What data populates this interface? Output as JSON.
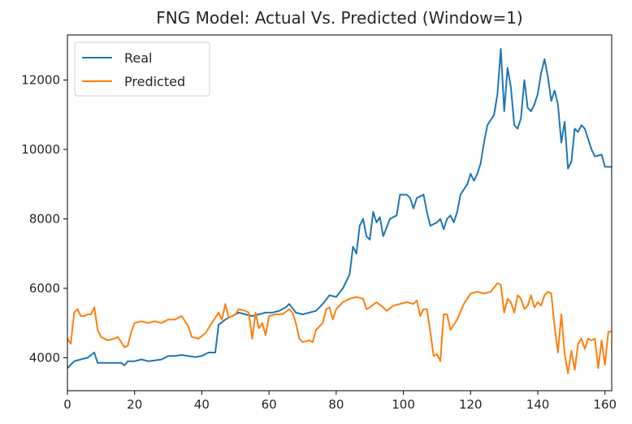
{
  "chart_data": {
    "type": "line",
    "title": "FNG Model: Actual Vs. Predicted (Window=1)",
    "xlabel": "",
    "ylabel": "",
    "xlim": [
      0,
      162
    ],
    "ylim": [
      3050,
      13300
    ],
    "xticks": [
      0,
      20,
      40,
      60,
      80,
      100,
      120,
      140,
      160
    ],
    "yticks": [
      4000,
      6000,
      8000,
      10000,
      12000
    ],
    "grid": false,
    "legend_position": "top-left",
    "series": [
      {
        "name": "Real",
        "color": "#1f77b4",
        "points": [
          [
            0,
            3700
          ],
          [
            2,
            3900
          ],
          [
            4,
            3950
          ],
          [
            6,
            4000
          ],
          [
            8,
            4150
          ],
          [
            9,
            3850
          ],
          [
            12,
            3850
          ],
          [
            16,
            3850
          ],
          [
            17,
            3780
          ],
          [
            18,
            3900
          ],
          [
            20,
            3900
          ],
          [
            22,
            3950
          ],
          [
            24,
            3900
          ],
          [
            26,
            3920
          ],
          [
            28,
            3950
          ],
          [
            30,
            4050
          ],
          [
            32,
            4050
          ],
          [
            34,
            4080
          ],
          [
            36,
            4050
          ],
          [
            38,
            4020
          ],
          [
            40,
            4050
          ],
          [
            42,
            4150
          ],
          [
            44,
            4150
          ],
          [
            45,
            4950
          ],
          [
            47,
            5100
          ],
          [
            49,
            5200
          ],
          [
            51,
            5300
          ],
          [
            53,
            5250
          ],
          [
            55,
            5200
          ],
          [
            57,
            5250
          ],
          [
            59,
            5300
          ],
          [
            61,
            5300
          ],
          [
            63,
            5350
          ],
          [
            65,
            5450
          ],
          [
            66,
            5550
          ],
          [
            68,
            5300
          ],
          [
            70,
            5250
          ],
          [
            72,
            5300
          ],
          [
            74,
            5350
          ],
          [
            76,
            5550
          ],
          [
            78,
            5800
          ],
          [
            80,
            5750
          ],
          [
            82,
            6000
          ],
          [
            84,
            6400
          ],
          [
            85,
            7200
          ],
          [
            86,
            7000
          ],
          [
            87,
            7800
          ],
          [
            88,
            8000
          ],
          [
            89,
            7500
          ],
          [
            90,
            7400
          ],
          [
            91,
            8200
          ],
          [
            92,
            7900
          ],
          [
            93,
            8050
          ],
          [
            94,
            7500
          ],
          [
            96,
            8000
          ],
          [
            98,
            8100
          ],
          [
            99,
            8700
          ],
          [
            101,
            8700
          ],
          [
            102,
            8600
          ],
          [
            103,
            8300
          ],
          [
            104,
            8600
          ],
          [
            106,
            8700
          ],
          [
            107,
            8200
          ],
          [
            108,
            7800
          ],
          [
            110,
            7900
          ],
          [
            111,
            8000
          ],
          [
            112,
            7700
          ],
          [
            113,
            8000
          ],
          [
            114,
            8100
          ],
          [
            115,
            7900
          ],
          [
            116,
            8200
          ],
          [
            117,
            8700
          ],
          [
            119,
            9000
          ],
          [
            120,
            9300
          ],
          [
            121,
            9100
          ],
          [
            122,
            9300
          ],
          [
            123,
            9600
          ],
          [
            124,
            10200
          ],
          [
            125,
            10700
          ],
          [
            127,
            11000
          ],
          [
            128,
            11600
          ],
          [
            129,
            12900
          ],
          [
            130,
            11100
          ],
          [
            131,
            12350
          ],
          [
            132,
            11800
          ],
          [
            133,
            10700
          ],
          [
            134,
            10600
          ],
          [
            135,
            10900
          ],
          [
            136,
            12000
          ],
          [
            137,
            11200
          ],
          [
            138,
            11100
          ],
          [
            139,
            11300
          ],
          [
            140,
            11600
          ],
          [
            141,
            12200
          ],
          [
            142,
            12600
          ],
          [
            143,
            12100
          ],
          [
            144,
            11400
          ],
          [
            145,
            11700
          ],
          [
            146,
            11300
          ],
          [
            147,
            10200
          ],
          [
            148,
            10800
          ],
          [
            149,
            9450
          ],
          [
            150,
            9650
          ],
          [
            151,
            10600
          ],
          [
            152,
            10500
          ],
          [
            153,
            10700
          ],
          [
            154,
            10600
          ],
          [
            155,
            10300
          ],
          [
            156,
            10000
          ],
          [
            157,
            9800
          ],
          [
            159,
            9850
          ],
          [
            160,
            9500
          ],
          [
            162,
            9500
          ]
        ]
      },
      {
        "name": "Predicted",
        "color": "#ff7f0e",
        "points": [
          [
            0,
            4550
          ],
          [
            1,
            4400
          ],
          [
            2,
            5300
          ],
          [
            3,
            5400
          ],
          [
            4,
            5200
          ],
          [
            5,
            5200
          ],
          [
            6,
            5250
          ],
          [
            7,
            5250
          ],
          [
            8,
            5450
          ],
          [
            9,
            4800
          ],
          [
            10,
            4600
          ],
          [
            12,
            4500
          ],
          [
            14,
            4550
          ],
          [
            15,
            4600
          ],
          [
            16,
            4450
          ],
          [
            17,
            4300
          ],
          [
            18,
            4350
          ],
          [
            19,
            4750
          ],
          [
            20,
            5000
          ],
          [
            22,
            5050
          ],
          [
            24,
            5000
          ],
          [
            26,
            5050
          ],
          [
            28,
            5000
          ],
          [
            30,
            5100
          ],
          [
            32,
            5100
          ],
          [
            34,
            5200
          ],
          [
            36,
            4900
          ],
          [
            37,
            4600
          ],
          [
            39,
            4550
          ],
          [
            41,
            4700
          ],
          [
            43,
            5000
          ],
          [
            45,
            5300
          ],
          [
            46,
            5100
          ],
          [
            47,
            5550
          ],
          [
            48,
            5150
          ],
          [
            50,
            5250
          ],
          [
            51,
            5400
          ],
          [
            53,
            5350
          ],
          [
            54,
            5300
          ],
          [
            55,
            4550
          ],
          [
            56,
            5300
          ],
          [
            57,
            4850
          ],
          [
            58,
            5000
          ],
          [
            59,
            4650
          ],
          [
            60,
            5200
          ],
          [
            62,
            5250
          ],
          [
            64,
            5250
          ],
          [
            66,
            5400
          ],
          [
            67,
            5300
          ],
          [
            68,
            5000
          ],
          [
            69,
            4550
          ],
          [
            70,
            4450
          ],
          [
            72,
            4500
          ],
          [
            73,
            4450
          ],
          [
            74,
            4800
          ],
          [
            75,
            4900
          ],
          [
            76,
            5000
          ],
          [
            77,
            5400
          ],
          [
            78,
            5450
          ],
          [
            79,
            5100
          ],
          [
            80,
            5400
          ],
          [
            82,
            5600
          ],
          [
            84,
            5700
          ],
          [
            86,
            5750
          ],
          [
            88,
            5700
          ],
          [
            89,
            5400
          ],
          [
            90,
            5450
          ],
          [
            92,
            5600
          ],
          [
            94,
            5450
          ],
          [
            95,
            5350
          ],
          [
            97,
            5500
          ],
          [
            99,
            5550
          ],
          [
            101,
            5600
          ],
          [
            103,
            5550
          ],
          [
            104,
            5650
          ],
          [
            105,
            5200
          ],
          [
            106,
            5400
          ],
          [
            107,
            5400
          ],
          [
            108,
            4750
          ],
          [
            109,
            4050
          ],
          [
            110,
            4100
          ],
          [
            111,
            3900
          ],
          [
            112,
            5250
          ],
          [
            113,
            5250
          ],
          [
            114,
            4800
          ],
          [
            115,
            4950
          ],
          [
            116,
            5100
          ],
          [
            118,
            5550
          ],
          [
            120,
            5850
          ],
          [
            122,
            5900
          ],
          [
            124,
            5850
          ],
          [
            126,
            5900
          ],
          [
            128,
            6150
          ],
          [
            129,
            6100
          ],
          [
            130,
            5300
          ],
          [
            131,
            5700
          ],
          [
            132,
            5600
          ],
          [
            133,
            5300
          ],
          [
            134,
            5800
          ],
          [
            135,
            5700
          ],
          [
            136,
            5400
          ],
          [
            137,
            5500
          ],
          [
            138,
            5800
          ],
          [
            139,
            5450
          ],
          [
            140,
            5600
          ],
          [
            141,
            5500
          ],
          [
            142,
            5800
          ],
          [
            143,
            5900
          ],
          [
            144,
            5850
          ],
          [
            145,
            4900
          ],
          [
            146,
            4150
          ],
          [
            147,
            5250
          ],
          [
            148,
            4100
          ],
          [
            149,
            3550
          ],
          [
            150,
            4200
          ],
          [
            151,
            3650
          ],
          [
            152,
            4400
          ],
          [
            153,
            4550
          ],
          [
            154,
            4250
          ],
          [
            155,
            4550
          ],
          [
            156,
            4500
          ],
          [
            157,
            4550
          ],
          [
            158,
            3700
          ],
          [
            159,
            4500
          ],
          [
            160,
            3800
          ],
          [
            161,
            4750
          ],
          [
            162,
            4750
          ]
        ]
      }
    ]
  }
}
